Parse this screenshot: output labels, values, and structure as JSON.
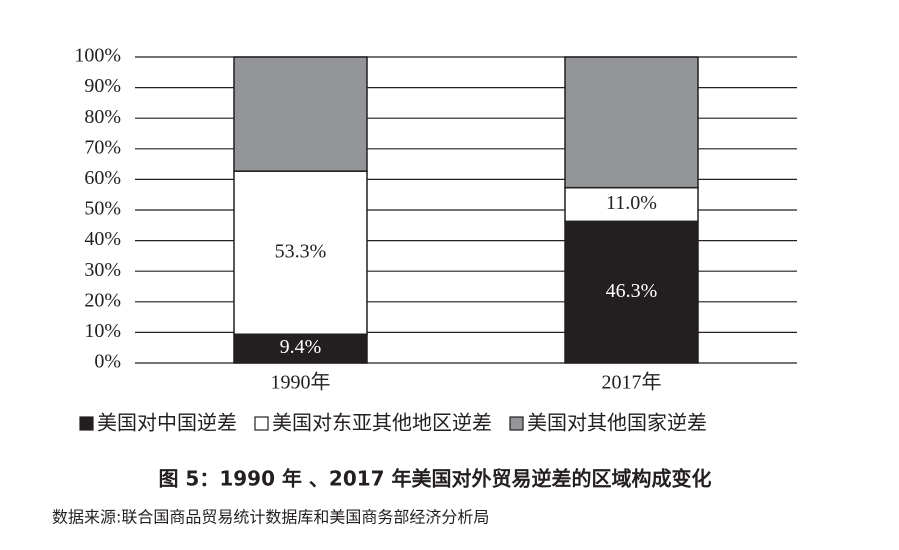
{
  "chart_data": {
    "type": "bar",
    "stacked": true,
    "title": "图 5：1990 年 、2017 年美国对外贸易逆差的区域构成变化",
    "source": "数据来源:联合国商品贸易统计数据库和美国商务部经济分析局",
    "categories": [
      "1990年",
      "2017年"
    ],
    "series": [
      {
        "name": "美国对中国逆差",
        "color": "#231f20",
        "values": [
          9.4,
          46.3
        ],
        "value_labels": [
          "9.4%",
          "46.3%"
        ]
      },
      {
        "name": "美国对东亚其他地区逆差",
        "color": "#ffffff",
        "values": [
          53.3,
          11.0
        ],
        "value_labels": [
          "53.3%",
          "11.0%"
        ]
      },
      {
        "name": "美国对其他国家逆差",
        "color": "#939598",
        "values": [
          37.3,
          42.7
        ]
      }
    ],
    "ylim": [
      0,
      100
    ],
    "yticks": [
      {
        "value": 0,
        "label": "0%"
      },
      {
        "value": 10,
        "label": "10%"
      },
      {
        "value": 20,
        "label": "20%"
      },
      {
        "value": 30,
        "label": "30%"
      },
      {
        "value": 40,
        "label": "40%"
      },
      {
        "value": 50,
        "label": "50%"
      },
      {
        "value": 60,
        "label": "60%"
      },
      {
        "value": 70,
        "label": "70%"
      },
      {
        "value": 80,
        "label": "80%"
      },
      {
        "value": 90,
        "label": "90%"
      },
      {
        "value": 100,
        "label": "100%"
      }
    ],
    "grid": true
  }
}
